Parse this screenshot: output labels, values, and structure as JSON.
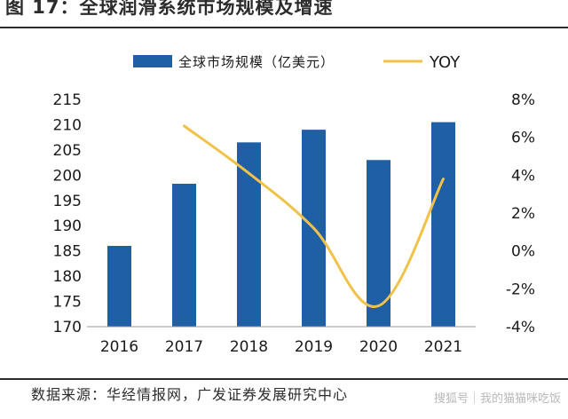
{
  "figure_title": "图 17：全球润滑系统市场规模及增速",
  "source_note": "数据来源：华经情报网，广发证券发展研究中心",
  "watermark": "搜狐号｜我的猫猫咪吃饭",
  "chart_data": {
    "type": "bar+line",
    "categories": [
      "2016",
      "2017",
      "2018",
      "2019",
      "2020",
      "2021"
    ],
    "series": [
      {
        "name": "全球市场规模（亿美元）",
        "type": "bar",
        "axis": "left",
        "color": "#1f5fa6",
        "values": [
          186,
          198.3,
          206.5,
          209,
          203,
          210.5
        ]
      },
      {
        "name": "YOY",
        "type": "line",
        "axis": "right",
        "color": "#f0c24a",
        "values": [
          null,
          6.6,
          4.1,
          1.2,
          -2.9,
          3.8
        ]
      }
    ],
    "left_axis": {
      "min": 170,
      "max": 215,
      "ticks": [
        "170",
        "175",
        "180",
        "185",
        "190",
        "195",
        "200",
        "205",
        "210",
        "215"
      ]
    },
    "right_axis": {
      "min": -4,
      "max": 8,
      "ticks": [
        "-4%",
        "-2%",
        "0%",
        "2%",
        "4%",
        "6%",
        "8%"
      ]
    },
    "legend_position": "top",
    "grid": false
  }
}
